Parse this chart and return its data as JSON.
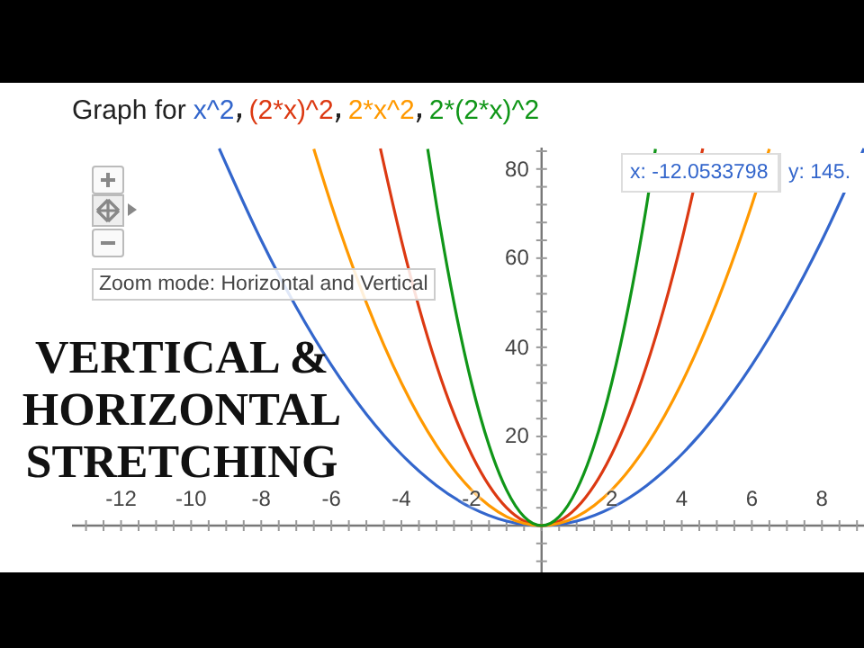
{
  "chart_data": {
    "type": "line",
    "title": "Graph for",
    "series": [
      {
        "name": "x^2",
        "color": "#3366cc",
        "x": [
          -9.2,
          -8,
          -7,
          -6,
          -5,
          -4,
          -3,
          -2,
          -1,
          0,
          1,
          2,
          3,
          4,
          5,
          6,
          7,
          8,
          9.2
        ],
        "values": [
          84.6,
          64,
          49,
          36,
          25,
          16,
          9,
          4,
          1,
          0,
          1,
          4,
          9,
          16,
          25,
          36,
          49,
          64,
          84.6
        ]
      },
      {
        "name": "(2*x)^2",
        "color": "#dc3912",
        "x": [
          -4.6,
          -4,
          -3.5,
          -3,
          -2.5,
          -2,
          -1.5,
          -1,
          -0.5,
          0,
          0.5,
          1,
          1.5,
          2,
          2.5,
          3,
          3.5,
          4,
          4.6
        ],
        "values": [
          84.6,
          64,
          49,
          36,
          25,
          16,
          9,
          4,
          1,
          0,
          1,
          4,
          9,
          16,
          25,
          36,
          49,
          64,
          84.6
        ]
      },
      {
        "name": "2*x^2",
        "color": "#ff9900",
        "x": [
          -6.5,
          -6,
          -5,
          -4,
          -3,
          -2,
          -1,
          0,
          1,
          2,
          3,
          4,
          5,
          6,
          6.5
        ],
        "values": [
          84.5,
          72,
          50,
          32,
          18,
          8,
          2,
          0,
          2,
          8,
          18,
          32,
          50,
          72,
          84.5
        ]
      },
      {
        "name": "2*(2*x)^2",
        "color": "#109618",
        "x": [
          -3.25,
          -3,
          -2.5,
          -2,
          -1.5,
          -1,
          -0.5,
          0,
          0.5,
          1,
          1.5,
          2,
          2.5,
          3,
          3.25
        ],
        "values": [
          84.5,
          72,
          50,
          32,
          18,
          8,
          2,
          0,
          2,
          8,
          18,
          32,
          50,
          72,
          84.5
        ]
      }
    ],
    "xlim": [
      -13.4,
      9.2
    ],
    "ylim": [
      -10.5,
      84.8
    ],
    "xticks": [
      -12,
      -10,
      -8,
      -6,
      -4,
      -2,
      2,
      4,
      6,
      8
    ],
    "yticks": [
      20,
      40,
      60,
      80
    ],
    "annotations": [
      "VERTICAL & HORIZONTAL STRETCHING",
      "Zoom mode: Horizontal and Vertical",
      "x: -12.0533798",
      "y: 145."
    ]
  }
}
